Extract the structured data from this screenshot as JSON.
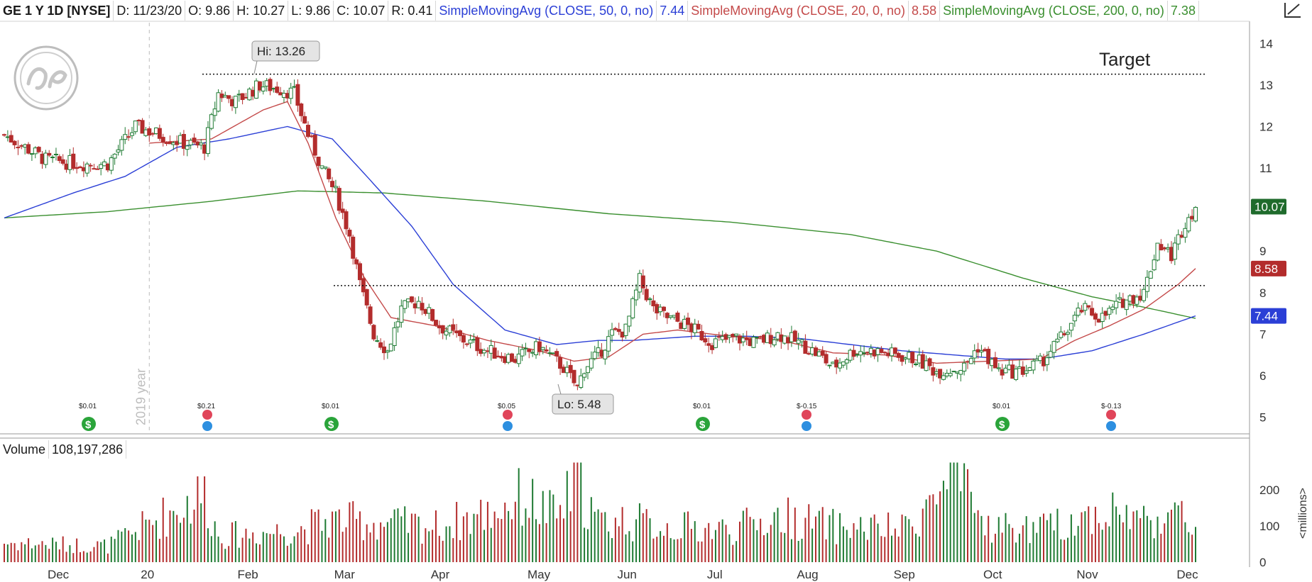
{
  "header": {
    "symbol": "GE 1 Y 1D [NYSE]",
    "date": "D: 11/23/20",
    "open": "O: 9.86",
    "high": "H: 10.27",
    "low": "L: 9.86",
    "close": "C: 10.07",
    "range": "R: 0.41",
    "sma50_label": "SimpleMovingAvg (CLOSE, 50, 0, no)",
    "sma50_value": "7.44",
    "sma20_label": "SimpleMovingAvg (CLOSE, 20, 0, no)",
    "sma20_value": "8.58",
    "sma200_label": "SimpleMovingAvg (CLOSE, 200, 0, no)",
    "sma200_value": "7.38"
  },
  "volume_header": {
    "label": "Volume",
    "value": "108,197,286"
  },
  "colors": {
    "up": "#1e7a32",
    "down": "#b32c2c",
    "sma50": "#2b3fd6",
    "sma20": "#c44a4a",
    "sma200": "#3a8f2f",
    "close_badge": "#1f6b2c",
    "sma20_badge": "#b32c2c",
    "sma50_badge": "#2b3fd6"
  },
  "chart_data": {
    "type": "candlestick",
    "price_axis": {
      "ticks": [
        "5",
        "6",
        "7",
        "8",
        "9",
        "10",
        "11",
        "12",
        "13",
        "14"
      ],
      "range": [
        4.6,
        14.5
      ]
    },
    "volume_axis": {
      "ticks": [
        "200",
        "100",
        "0"
      ],
      "unit_label": "<millions>",
      "range": [
        0,
        280
      ]
    },
    "x_ticks": [
      "Dec",
      "20",
      "Feb",
      "Mar",
      "Apr",
      "May",
      "Jun",
      "Jul",
      "Aug",
      "Sep",
      "Oct",
      "Nov",
      "Dec"
    ],
    "year_marker": "2019 year",
    "annotations": {
      "high": "Hi: 13.26",
      "low": "Lo: 5.48",
      "target": "Target",
      "target_level": 13.26,
      "support_level": 8.17
    },
    "last_values": {
      "close": "10.07",
      "sma20": "8.58",
      "sma50": "7.44"
    },
    "events": [
      {
        "month": "Dec",
        "type": "dividend",
        "label": "$0.01"
      },
      {
        "month": "Jan",
        "type": "earnings",
        "label": "$0.21"
      },
      {
        "month": "Feb",
        "type": "dividend",
        "label": "$0.01"
      },
      {
        "month": "Apr",
        "type": "earnings",
        "label": "$0.05"
      },
      {
        "month": "Jun",
        "type": "dividend",
        "label": "$0.01"
      },
      {
        "month": "Jul",
        "type": "earnings",
        "label": "$-0.15"
      },
      {
        "month": "Sep",
        "type": "dividend",
        "label": "$0.01"
      },
      {
        "month": "Oct",
        "type": "earnings",
        "label": "$-0.13"
      }
    ],
    "price_anchors": [
      [
        0,
        11.8
      ],
      [
        12,
        11.2
      ],
      [
        22,
        11.1
      ],
      [
        30,
        11.1
      ],
      [
        38,
        12.0
      ],
      [
        45,
        11.8
      ],
      [
        52,
        11.6
      ],
      [
        58,
        11.5
      ],
      [
        62,
        12.8
      ],
      [
        67,
        12.6
      ],
      [
        74,
        13.0
      ],
      [
        80,
        12.9
      ],
      [
        84,
        12.8
      ],
      [
        88,
        11.8
      ],
      [
        92,
        11.0
      ],
      [
        96,
        10.4
      ],
      [
        100,
        9.4
      ],
      [
        103,
        8.2
      ],
      [
        107,
        7.0
      ],
      [
        111,
        6.6
      ],
      [
        115,
        7.6
      ],
      [
        120,
        7.8
      ],
      [
        126,
        7.2
      ],
      [
        132,
        6.9
      ],
      [
        140,
        6.6
      ],
      [
        148,
        6.4
      ],
      [
        155,
        6.7
      ],
      [
        162,
        6.2
      ],
      [
        166,
        5.7
      ],
      [
        168,
        6.2
      ],
      [
        172,
        6.5
      ],
      [
        176,
        7.0
      ],
      [
        180,
        7.1
      ],
      [
        184,
        8.3
      ],
      [
        188,
        7.6
      ],
      [
        192,
        7.4
      ],
      [
        198,
        7.2
      ],
      [
        205,
        6.8
      ],
      [
        212,
        6.9
      ],
      [
        218,
        6.8
      ],
      [
        224,
        7.0
      ],
      [
        230,
        6.8
      ],
      [
        236,
        6.5
      ],
      [
        240,
        6.2
      ],
      [
        246,
        6.6
      ],
      [
        252,
        6.6
      ],
      [
        258,
        6.5
      ],
      [
        264,
        6.4
      ],
      [
        270,
        6.1
      ],
      [
        278,
        6.2
      ],
      [
        282,
        6.7
      ],
      [
        288,
        6.1
      ],
      [
        294,
        6.1
      ],
      [
        300,
        6.3
      ],
      [
        306,
        6.9
      ],
      [
        312,
        7.6
      ],
      [
        318,
        7.4
      ],
      [
        324,
        7.8
      ],
      [
        330,
        8.0
      ],
      [
        334,
        9.2
      ],
      [
        338,
        8.9
      ],
      [
        342,
        9.7
      ],
      [
        345,
        10.07
      ]
    ],
    "sma20_anchors": [
      [
        42,
        11.6
      ],
      [
        60,
        11.7
      ],
      [
        75,
        12.4
      ],
      [
        82,
        12.6
      ],
      [
        88,
        11.6
      ],
      [
        96,
        9.8
      ],
      [
        104,
        8.4
      ],
      [
        112,
        7.4
      ],
      [
        125,
        7.2
      ],
      [
        140,
        6.85
      ],
      [
        155,
        6.6
      ],
      [
        165,
        6.35
      ],
      [
        175,
        6.45
      ],
      [
        185,
        7.0
      ],
      [
        195,
        7.1
      ],
      [
        210,
        6.95
      ],
      [
        225,
        6.85
      ],
      [
        240,
        6.55
      ],
      [
        255,
        6.5
      ],
      [
        270,
        6.3
      ],
      [
        285,
        6.35
      ],
      [
        300,
        6.4
      ],
      [
        310,
        6.85
      ],
      [
        320,
        7.2
      ],
      [
        330,
        7.6
      ],
      [
        340,
        8.2
      ],
      [
        345,
        8.58
      ]
    ],
    "sma50_anchors": [
      [
        0,
        9.8
      ],
      [
        20,
        10.4
      ],
      [
        35,
        10.8
      ],
      [
        50,
        11.5
      ],
      [
        65,
        11.7
      ],
      [
        82,
        12.0
      ],
      [
        95,
        11.7
      ],
      [
        105,
        10.8
      ],
      [
        118,
        9.6
      ],
      [
        130,
        8.2
      ],
      [
        145,
        7.1
      ],
      [
        160,
        6.75
      ],
      [
        172,
        6.85
      ],
      [
        182,
        6.85
      ],
      [
        200,
        6.95
      ],
      [
        215,
        6.95
      ],
      [
        230,
        6.9
      ],
      [
        245,
        6.75
      ],
      [
        260,
        6.6
      ],
      [
        275,
        6.5
      ],
      [
        290,
        6.4
      ],
      [
        300,
        6.4
      ],
      [
        315,
        6.6
      ],
      [
        330,
        7.0
      ],
      [
        345,
        7.44
      ]
    ],
    "sma200_anchors": [
      [
        0,
        9.8
      ],
      [
        30,
        9.95
      ],
      [
        60,
        10.2
      ],
      [
        85,
        10.45
      ],
      [
        110,
        10.4
      ],
      [
        140,
        10.2
      ],
      [
        175,
        9.9
      ],
      [
        210,
        9.7
      ],
      [
        245,
        9.4
      ],
      [
        270,
        9.0
      ],
      [
        295,
        8.35
      ],
      [
        315,
        7.9
      ],
      [
        330,
        7.65
      ],
      [
        345,
        7.38
      ]
    ],
    "volume_anchors": [
      [
        0,
        60
      ],
      [
        30,
        50
      ],
      [
        58,
        210
      ],
      [
        62,
        80
      ],
      [
        85,
        100
      ],
      [
        95,
        130
      ],
      [
        110,
        120
      ],
      [
        125,
        110
      ],
      [
        140,
        150
      ],
      [
        150,
        200
      ],
      [
        160,
        140
      ],
      [
        166,
        250
      ],
      [
        172,
        120
      ],
      [
        180,
        130
      ],
      [
        190,
        110
      ],
      [
        210,
        100
      ],
      [
        225,
        140
      ],
      [
        240,
        110
      ],
      [
        260,
        100
      ],
      [
        275,
        250
      ],
      [
        285,
        110
      ],
      [
        300,
        100
      ],
      [
        310,
        130
      ],
      [
        320,
        160
      ],
      [
        330,
        130
      ],
      [
        338,
        150
      ],
      [
        345,
        108
      ]
    ]
  }
}
